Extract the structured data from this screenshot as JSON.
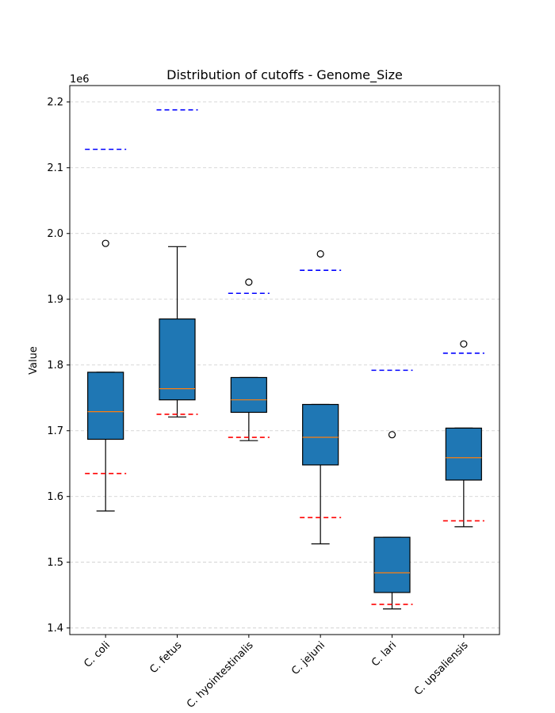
{
  "chart_data": {
    "type": "boxplot",
    "title": "Distribution of cutoffs - Genome_Size",
    "ylabel": "Value",
    "xlabel": "",
    "y_offset_label": "1e6",
    "ylim": [
      1.39,
      2.225
    ],
    "yticks": [
      "1.4",
      "1.5",
      "1.6",
      "1.7",
      "1.8",
      "1.9",
      "2.0",
      "2.1",
      "2.2"
    ],
    "ytick_values": [
      1.4,
      1.5,
      1.6,
      1.7,
      1.8,
      1.9,
      2.0,
      2.1,
      2.2
    ],
    "grid": "horizontal dashed",
    "box_color": "#1f77b4",
    "median_color": "#ff7f0e",
    "upper_cutoff_color": "#0000ff",
    "lower_cutoff_color": "#ff0000",
    "categories": [
      "C. coli",
      "C. fetus",
      "C. hyointestinalis",
      "C. jejuni",
      "C. lari",
      "C. upsaliensis"
    ],
    "boxes": [
      {
        "whisker_low": 1.578,
        "q1": 1.687,
        "median": 1.729,
        "q3": 1.789,
        "whisker_high": 1.789,
        "outliers": [
          1.985
        ],
        "lower_cutoff": 1.635,
        "upper_cutoff": 2.128
      },
      {
        "whisker_low": 1.721,
        "q1": 1.747,
        "median": 1.764,
        "q3": 1.87,
        "whisker_high": 1.98,
        "outliers": [],
        "lower_cutoff": 1.725,
        "upper_cutoff": 2.188
      },
      {
        "whisker_low": 1.685,
        "q1": 1.728,
        "median": 1.747,
        "q3": 1.781,
        "whisker_high": 1.781,
        "outliers": [
          1.926
        ],
        "lower_cutoff": 1.69,
        "upper_cutoff": 1.909
      },
      {
        "whisker_low": 1.528,
        "q1": 1.648,
        "median": 1.69,
        "q3": 1.74,
        "whisker_high": 1.74,
        "outliers": [
          1.969
        ],
        "lower_cutoff": 1.568,
        "upper_cutoff": 1.944
      },
      {
        "whisker_low": 1.429,
        "q1": 1.454,
        "median": 1.484,
        "q3": 1.538,
        "whisker_high": 1.538,
        "outliers": [
          1.694
        ],
        "lower_cutoff": 1.436,
        "upper_cutoff": 1.792
      },
      {
        "whisker_low": 1.554,
        "q1": 1.625,
        "median": 1.659,
        "q3": 1.704,
        "whisker_high": 1.704,
        "outliers": [
          1.832
        ],
        "lower_cutoff": 1.563,
        "upper_cutoff": 1.818
      }
    ]
  }
}
